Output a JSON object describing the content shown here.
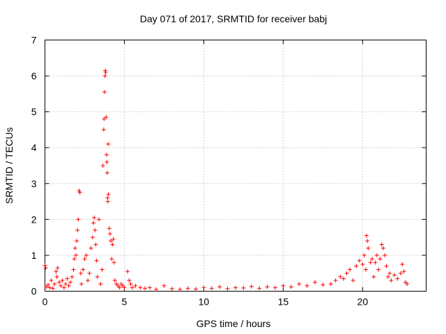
{
  "chart_data": {
    "type": "scatter",
    "title": "Day 071 of 2017, SRMTID for receiver babj",
    "xlabel": "GPS time / hours",
    "ylabel": "SRMTID / TECUs",
    "xlim": [
      0,
      24
    ],
    "ylim": [
      0,
      7
    ],
    "xticks": [
      0,
      5,
      10,
      15,
      20
    ],
    "yticks": [
      0,
      1,
      2,
      3,
      4,
      5,
      6,
      7
    ],
    "grid": true,
    "marker": "+",
    "series": [
      {
        "name": "SRMTID",
        "color": "#ff0000",
        "points": [
          [
            0.0,
            0.72
          ],
          [
            0.05,
            0.65
          ],
          [
            0.1,
            0.12
          ],
          [
            0.2,
            0.18
          ],
          [
            0.3,
            0.1
          ],
          [
            0.4,
            0.3
          ],
          [
            0.5,
            0.08
          ],
          [
            0.6,
            0.2
          ],
          [
            0.7,
            0.55
          ],
          [
            0.75,
            0.4
          ],
          [
            0.8,
            0.65
          ],
          [
            0.9,
            0.25
          ],
          [
            1.0,
            0.15
          ],
          [
            1.1,
            0.3
          ],
          [
            1.2,
            0.1
          ],
          [
            1.3,
            0.2
          ],
          [
            1.4,
            0.35
          ],
          [
            1.5,
            0.15
          ],
          [
            1.6,
            0.25
          ],
          [
            1.7,
            0.4
          ],
          [
            1.8,
            0.6
          ],
          [
            1.85,
            0.9
          ],
          [
            1.9,
            1.2
          ],
          [
            1.95,
            1.0
          ],
          [
            2.0,
            1.4
          ],
          [
            2.05,
            1.7
          ],
          [
            2.1,
            2.0
          ],
          [
            2.15,
            2.8
          ],
          [
            2.2,
            2.75
          ],
          [
            2.25,
            0.5
          ],
          [
            2.3,
            0.2
          ],
          [
            2.4,
            0.6
          ],
          [
            2.5,
            0.9
          ],
          [
            2.6,
            1.0
          ],
          [
            2.7,
            0.3
          ],
          [
            2.8,
            0.5
          ],
          [
            2.9,
            1.2
          ],
          [
            3.0,
            1.5
          ],
          [
            3.05,
            1.9
          ],
          [
            3.1,
            2.05
          ],
          [
            3.15,
            1.7
          ],
          [
            3.2,
            1.3
          ],
          [
            3.25,
            0.85
          ],
          [
            3.3,
            0.4
          ],
          [
            3.4,
            2.0
          ],
          [
            3.5,
            0.2
          ],
          [
            3.6,
            0.6
          ],
          [
            3.65,
            3.5
          ],
          [
            3.7,
            4.5
          ],
          [
            3.72,
            4.8
          ],
          [
            3.75,
            5.55
          ],
          [
            3.78,
            6.0
          ],
          [
            3.8,
            6.15
          ],
          [
            3.82,
            6.1
          ],
          [
            3.85,
            4.85
          ],
          [
            3.88,
            3.8
          ],
          [
            3.9,
            3.6
          ],
          [
            3.92,
            3.3
          ],
          [
            3.94,
            2.6
          ],
          [
            3.96,
            2.5
          ],
          [
            3.98,
            4.1
          ],
          [
            4.0,
            2.7
          ],
          [
            4.05,
            1.75
          ],
          [
            4.1,
            1.6
          ],
          [
            4.15,
            1.4
          ],
          [
            4.2,
            0.9
          ],
          [
            4.25,
            1.3
          ],
          [
            4.3,
            1.45
          ],
          [
            4.35,
            0.8
          ],
          [
            4.4,
            0.3
          ],
          [
            4.5,
            0.2
          ],
          [
            4.6,
            0.15
          ],
          [
            4.7,
            0.1
          ],
          [
            4.8,
            0.2
          ],
          [
            4.9,
            0.15
          ],
          [
            5.0,
            0.1
          ],
          [
            5.2,
            0.55
          ],
          [
            5.3,
            0.3
          ],
          [
            5.4,
            0.2
          ],
          [
            5.5,
            0.1
          ],
          [
            5.7,
            0.15
          ],
          [
            6.0,
            0.1
          ],
          [
            6.3,
            0.08
          ],
          [
            6.6,
            0.1
          ],
          [
            7.0,
            0.05
          ],
          [
            7.5,
            0.15
          ],
          [
            8.0,
            0.07
          ],
          [
            8.5,
            0.05
          ],
          [
            9.0,
            0.08
          ],
          [
            9.5,
            0.06
          ],
          [
            10.0,
            0.1
          ],
          [
            10.5,
            0.08
          ],
          [
            11.0,
            0.12
          ],
          [
            11.5,
            0.07
          ],
          [
            12.0,
            0.1
          ],
          [
            12.5,
            0.09
          ],
          [
            13.0,
            0.13
          ],
          [
            13.5,
            0.08
          ],
          [
            14.0,
            0.12
          ],
          [
            14.5,
            0.1
          ],
          [
            15.0,
            0.15
          ],
          [
            15.5,
            0.12
          ],
          [
            16.0,
            0.2
          ],
          [
            16.5,
            0.15
          ],
          [
            17.0,
            0.25
          ],
          [
            17.5,
            0.18
          ],
          [
            18.0,
            0.2
          ],
          [
            18.3,
            0.3
          ],
          [
            18.6,
            0.4
          ],
          [
            18.8,
            0.35
          ],
          [
            19.0,
            0.5
          ],
          [
            19.2,
            0.6
          ],
          [
            19.4,
            0.3
          ],
          [
            19.6,
            0.7
          ],
          [
            19.8,
            0.85
          ],
          [
            20.0,
            0.75
          ],
          [
            20.1,
            1.0
          ],
          [
            20.2,
            0.6
          ],
          [
            20.25,
            1.55
          ],
          [
            20.3,
            1.4
          ],
          [
            20.35,
            1.2
          ],
          [
            20.5,
            0.8
          ],
          [
            20.6,
            0.9
          ],
          [
            20.7,
            0.4
          ],
          [
            20.8,
            0.8
          ],
          [
            20.9,
            1.0
          ],
          [
            21.0,
            0.6
          ],
          [
            21.1,
            0.9
          ],
          [
            21.2,
            1.3
          ],
          [
            21.3,
            1.2
          ],
          [
            21.4,
            1.0
          ],
          [
            21.5,
            0.7
          ],
          [
            21.6,
            0.4
          ],
          [
            21.7,
            0.5
          ],
          [
            21.8,
            0.3
          ],
          [
            22.0,
            0.45
          ],
          [
            22.2,
            0.35
          ],
          [
            22.4,
            0.5
          ],
          [
            22.5,
            0.75
          ],
          [
            22.6,
            0.55
          ],
          [
            22.7,
            0.25
          ],
          [
            22.8,
            0.2
          ]
        ]
      }
    ]
  }
}
